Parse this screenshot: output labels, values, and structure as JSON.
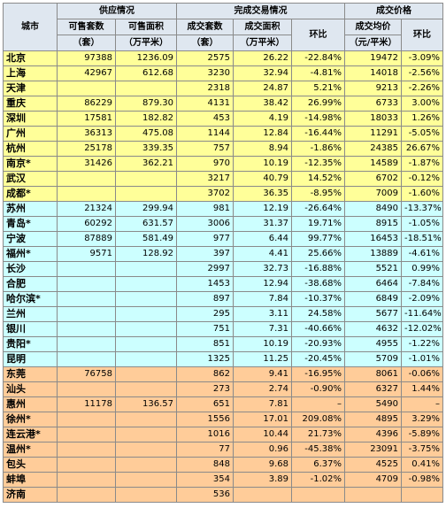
{
  "header": {
    "city": "城市",
    "supply": "供应情况",
    "deal": "完成交易情况",
    "price": "成交价格",
    "avail_units": "可售套数",
    "avail_area": "可售面积",
    "deal_units": "成交套数",
    "deal_area": "成交面积",
    "deal_change": "环比",
    "avg_price": "成交均价",
    "price_change": "环比",
    "unit_units": "（套）",
    "unit_area": "（万平米）",
    "unit_price": "（元/平米）"
  },
  "rows": [
    {
      "city": "北京",
      "avail_units": "97388",
      "avail_area": "1236.09",
      "deal_units": "2575",
      "deal_area": "26.22",
      "deal_change": "-22.84%",
      "avg_price": "19472",
      "price_change": "-3.09%",
      "group": 1
    },
    {
      "city": "上海",
      "avail_units": "42967",
      "avail_area": "612.68",
      "deal_units": "3230",
      "deal_area": "32.94",
      "deal_change": "-4.81%",
      "avg_price": "14018",
      "price_change": "-2.56%",
      "group": 1
    },
    {
      "city": "天津",
      "avail_units": "",
      "avail_area": "",
      "deal_units": "2318",
      "deal_area": "24.87",
      "deal_change": "5.21%",
      "avg_price": "9213",
      "price_change": "-2.26%",
      "group": 1
    },
    {
      "city": "重庆",
      "avail_units": "86229",
      "avail_area": "879.30",
      "deal_units": "4131",
      "deal_area": "38.42",
      "deal_change": "26.99%",
      "avg_price": "6733",
      "price_change": "3.00%",
      "group": 1
    },
    {
      "city": "深圳",
      "avail_units": "17581",
      "avail_area": "182.82",
      "deal_units": "453",
      "deal_area": "4.19",
      "deal_change": "-14.98%",
      "avg_price": "18033",
      "price_change": "1.26%",
      "group": 1
    },
    {
      "city": "广州",
      "avail_units": "36313",
      "avail_area": "475.08",
      "deal_units": "1144",
      "deal_area": "12.84",
      "deal_change": "-16.44%",
      "avg_price": "11291",
      "price_change": "-5.05%",
      "group": 1
    },
    {
      "city": "杭州",
      "avail_units": "25178",
      "avail_area": "339.35",
      "deal_units": "757",
      "deal_area": "8.94",
      "deal_change": "-1.86%",
      "avg_price": "24385",
      "price_change": "26.67%",
      "group": 1
    },
    {
      "city": "南京*",
      "avail_units": "31426",
      "avail_area": "362.21",
      "deal_units": "970",
      "deal_area": "10.19",
      "deal_change": "-12.35%",
      "avg_price": "14589",
      "price_change": "-1.87%",
      "group": 1
    },
    {
      "city": "武汉",
      "avail_units": "",
      "avail_area": "",
      "deal_units": "3217",
      "deal_area": "40.79",
      "deal_change": "14.52%",
      "avg_price": "6702",
      "price_change": "-0.12%",
      "group": 1
    },
    {
      "city": "成都*",
      "avail_units": "",
      "avail_area": "",
      "deal_units": "3702",
      "deal_area": "36.35",
      "deal_change": "-8.95%",
      "avg_price": "7009",
      "price_change": "-1.60%",
      "group": 1
    },
    {
      "city": "苏州",
      "avail_units": "21324",
      "avail_area": "299.94",
      "deal_units": "981",
      "deal_area": "12.19",
      "deal_change": "-26.64%",
      "avg_price": "8490",
      "price_change": "-13.37%",
      "group": 2
    },
    {
      "city": "青岛*",
      "avail_units": "60292",
      "avail_area": "631.57",
      "deal_units": "3006",
      "deal_area": "31.37",
      "deal_change": "19.71%",
      "avg_price": "8915",
      "price_change": "-1.05%",
      "group": 2
    },
    {
      "city": "宁波",
      "avail_units": "87889",
      "avail_area": "581.49",
      "deal_units": "977",
      "deal_area": "6.44",
      "deal_change": "99.77%",
      "avg_price": "16453",
      "price_change": "-18.51%",
      "group": 2
    },
    {
      "city": "福州*",
      "avail_units": "9571",
      "avail_area": "128.92",
      "deal_units": "397",
      "deal_area": "4.41",
      "deal_change": "25.66%",
      "avg_price": "13889",
      "price_change": "-4.61%",
      "group": 2
    },
    {
      "city": "长沙",
      "avail_units": "",
      "avail_area": "",
      "deal_units": "2997",
      "deal_area": "32.73",
      "deal_change": "-16.88%",
      "avg_price": "5521",
      "price_change": "0.99%",
      "group": 2
    },
    {
      "city": "合肥",
      "avail_units": "",
      "avail_area": "",
      "deal_units": "1453",
      "deal_area": "12.94",
      "deal_change": "-38.68%",
      "avg_price": "6464",
      "price_change": "-7.84%",
      "group": 2
    },
    {
      "city": "哈尔滨*",
      "avail_units": "",
      "avail_area": "",
      "deal_units": "897",
      "deal_area": "7.84",
      "deal_change": "-10.37%",
      "avg_price": "6849",
      "price_change": "-2.09%",
      "group": 2
    },
    {
      "city": "兰州",
      "avail_units": "",
      "avail_area": "",
      "deal_units": "295",
      "deal_area": "3.11",
      "deal_change": "24.58%",
      "avg_price": "5677",
      "price_change": "-11.64%",
      "group": 2
    },
    {
      "city": "银川",
      "avail_units": "",
      "avail_area": "",
      "deal_units": "751",
      "deal_area": "7.31",
      "deal_change": "-40.66%",
      "avg_price": "4632",
      "price_change": "-12.02%",
      "group": 2
    },
    {
      "city": "贵阳*",
      "avail_units": "",
      "avail_area": "",
      "deal_units": "851",
      "deal_area": "10.19",
      "deal_change": "-20.93%",
      "avg_price": "4955",
      "price_change": "-1.22%",
      "group": 2
    },
    {
      "city": "昆明",
      "avail_units": "",
      "avail_area": "",
      "deal_units": "1325",
      "deal_area": "11.25",
      "deal_change": "-20.45%",
      "avg_price": "5709",
      "price_change": "-1.01%",
      "group": 2
    },
    {
      "city": "东莞",
      "avail_units": "76758",
      "avail_area": "",
      "deal_units": "862",
      "deal_area": "9.41",
      "deal_change": "-16.95%",
      "avg_price": "8061",
      "price_change": "-0.06%",
      "group": 3
    },
    {
      "city": "汕头",
      "avail_units": "",
      "avail_area": "",
      "deal_units": "273",
      "deal_area": "2.74",
      "deal_change": "-0.90%",
      "avg_price": "6327",
      "price_change": "1.44%",
      "group": 3
    },
    {
      "city": "惠州",
      "avail_units": "11178",
      "avail_area": "136.57",
      "deal_units": "651",
      "deal_area": "7.81",
      "deal_change": "–",
      "avg_price": "5490",
      "price_change": "–",
      "group": 3
    },
    {
      "city": "徐州*",
      "avail_units": "",
      "avail_area": "",
      "deal_units": "1556",
      "deal_area": "17.01",
      "deal_change": "209.08%",
      "avg_price": "4895",
      "price_change": "3.29%",
      "group": 3
    },
    {
      "city": "连云港*",
      "avail_units": "",
      "avail_area": "",
      "deal_units": "1016",
      "deal_area": "10.44",
      "deal_change": "21.73%",
      "avg_price": "4396",
      "price_change": "-5.89%",
      "group": 3
    },
    {
      "city": "温州*",
      "avail_units": "",
      "avail_area": "",
      "deal_units": "77",
      "deal_area": "0.96",
      "deal_change": "-45.38%",
      "avg_price": "23091",
      "price_change": "-3.75%",
      "group": 3
    },
    {
      "city": "包头",
      "avail_units": "",
      "avail_area": "",
      "deal_units": "848",
      "deal_area": "9.68",
      "deal_change": "6.37%",
      "avg_price": "4525",
      "price_change": "0.41%",
      "group": 3
    },
    {
      "city": "蚌埠",
      "avail_units": "",
      "avail_area": "",
      "deal_units": "354",
      "deal_area": "3.89",
      "deal_change": "-1.02%",
      "avg_price": "4709",
      "price_change": "-0.98%",
      "group": 3
    },
    {
      "city": "济南",
      "avail_units": "",
      "avail_area": "",
      "deal_units": "536",
      "deal_area": "",
      "deal_change": "",
      "avg_price": "",
      "price_change": "",
      "group": 3
    }
  ]
}
